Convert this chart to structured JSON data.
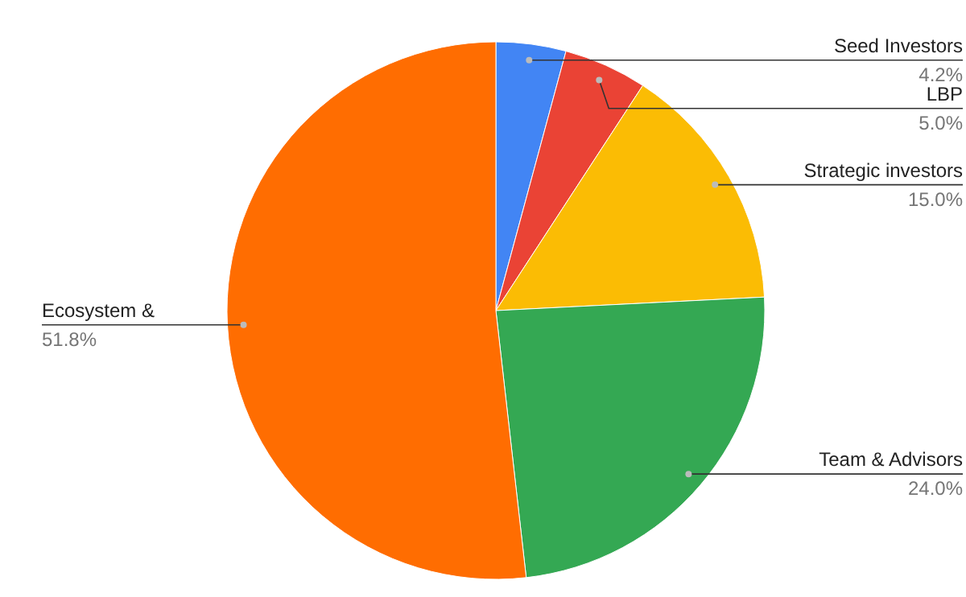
{
  "chart_data": {
    "type": "pie",
    "categories": [
      "Seed Investors",
      "LBP",
      "Strategic investors",
      "Team & Advisors",
      "Ecosystem &"
    ],
    "values": [
      4.2,
      5.0,
      15.0,
      24.0,
      51.8
    ],
    "colors": [
      "#4285f4",
      "#ea4335",
      "#fbbc04",
      "#34a853",
      "#ff6d01"
    ],
    "value_labels": [
      "4.2%",
      "5.0%",
      "15.0%",
      "24.0%",
      "51.8%"
    ]
  }
}
